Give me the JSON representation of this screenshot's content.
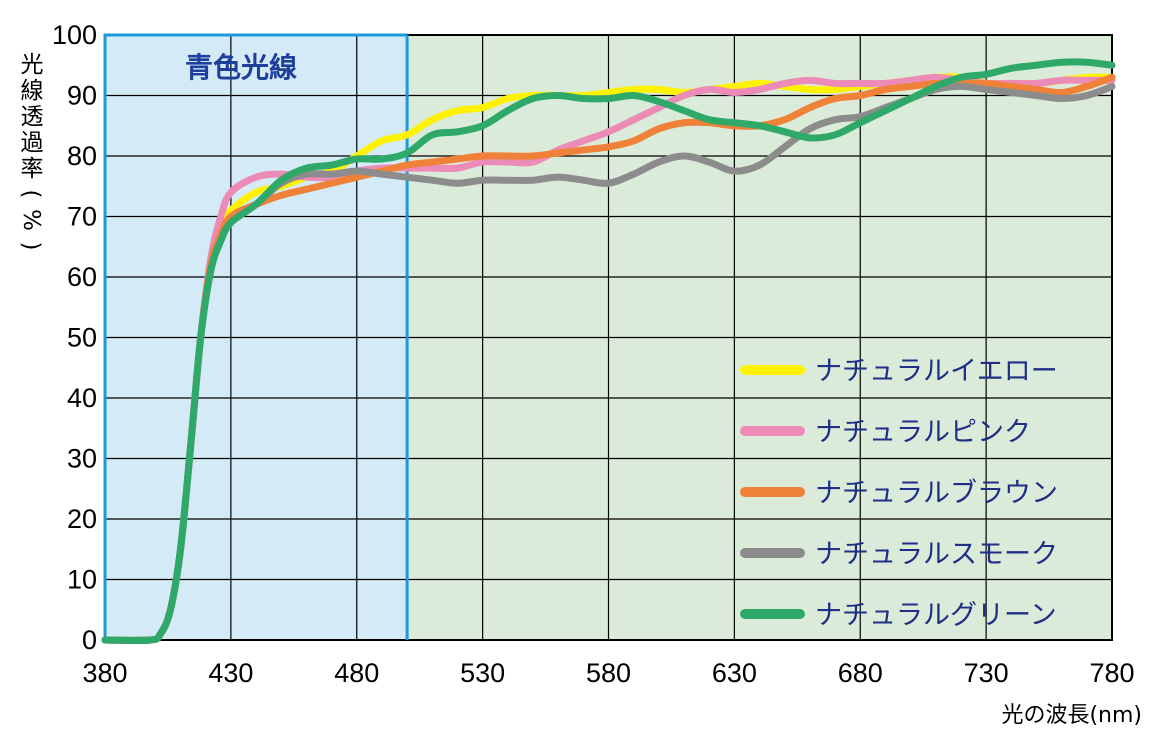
{
  "chart_data": {
    "type": "line",
    "xlabel": "光の波長(nm)",
    "ylabel": "光線透過率(%)",
    "xlim": [
      380,
      780
    ],
    "ylim": [
      0,
      100
    ],
    "x_ticks": [
      "380",
      "430",
      "480",
      "530",
      "580",
      "630",
      "680",
      "730",
      "780"
    ],
    "y_ticks": [
      "0",
      "10",
      "20",
      "30",
      "40",
      "50",
      "60",
      "70",
      "80",
      "90",
      "100"
    ],
    "grid": true,
    "legend_position": "bottom-right",
    "annotation": {
      "label": "青色光線",
      "x_start": 380,
      "x_end": 500
    },
    "colors": {
      "blue_region_fill": "#d4ebf7",
      "rest_fill": "#dbebd9",
      "blue_region_line": "#1a9ad9"
    },
    "series": [
      {
        "name": "ナチュラルイエロー",
        "color": "#fff200",
        "points": [
          [
            380,
            0
          ],
          [
            398,
            0
          ],
          [
            402,
            1
          ],
          [
            406,
            5
          ],
          [
            410,
            15
          ],
          [
            414,
            32
          ],
          [
            418,
            50
          ],
          [
            422,
            62
          ],
          [
            426,
            68
          ],
          [
            430,
            71
          ],
          [
            440,
            74
          ],
          [
            450,
            75
          ],
          [
            460,
            76.5
          ],
          [
            470,
            77.5
          ],
          [
            480,
            80
          ],
          [
            490,
            82.5
          ],
          [
            500,
            83.5
          ],
          [
            510,
            86
          ],
          [
            520,
            87.5
          ],
          [
            530,
            88
          ],
          [
            540,
            89.5
          ],
          [
            550,
            90
          ],
          [
            560,
            90
          ],
          [
            570,
            90
          ],
          [
            580,
            90.5
          ],
          [
            590,
            91
          ],
          [
            600,
            91
          ],
          [
            610,
            90.5
          ],
          [
            620,
            91
          ],
          [
            630,
            91.5
          ],
          [
            640,
            92
          ],
          [
            650,
            91.5
          ],
          [
            660,
            91
          ],
          [
            670,
            91
          ],
          [
            680,
            91.5
          ],
          [
            690,
            92
          ],
          [
            700,
            92.5
          ],
          [
            710,
            93
          ],
          [
            720,
            93
          ],
          [
            730,
            92
          ],
          [
            740,
            92
          ],
          [
            750,
            92
          ],
          [
            760,
            92.5
          ],
          [
            770,
            93
          ],
          [
            780,
            93
          ]
        ]
      },
      {
        "name": "ナチュラルピンク",
        "color": "#ec8bb7",
        "points": [
          [
            380,
            0
          ],
          [
            398,
            0
          ],
          [
            402,
            1
          ],
          [
            406,
            5
          ],
          [
            410,
            15
          ],
          [
            414,
            32
          ],
          [
            418,
            50
          ],
          [
            422,
            63
          ],
          [
            426,
            70
          ],
          [
            430,
            74
          ],
          [
            440,
            76.5
          ],
          [
            450,
            77
          ],
          [
            460,
            76.5
          ],
          [
            470,
            76.5
          ],
          [
            480,
            77.5
          ],
          [
            490,
            78
          ],
          [
            500,
            78
          ],
          [
            510,
            78
          ],
          [
            520,
            78
          ],
          [
            530,
            79
          ],
          [
            540,
            79
          ],
          [
            550,
            79
          ],
          [
            560,
            81
          ],
          [
            570,
            82.5
          ],
          [
            580,
            84
          ],
          [
            590,
            86
          ],
          [
            600,
            88
          ],
          [
            610,
            90
          ],
          [
            620,
            91
          ],
          [
            630,
            90.5
          ],
          [
            640,
            91
          ],
          [
            650,
            92
          ],
          [
            660,
            92.5
          ],
          [
            670,
            92
          ],
          [
            680,
            92
          ],
          [
            690,
            92
          ],
          [
            700,
            92.5
          ],
          [
            710,
            93
          ],
          [
            720,
            92.5
          ],
          [
            730,
            92
          ],
          [
            740,
            92
          ],
          [
            750,
            92
          ],
          [
            760,
            92.5
          ],
          [
            770,
            92.5
          ],
          [
            780,
            92.5
          ]
        ]
      },
      {
        "name": "ナチュラルブラウン",
        "color": "#ef8238",
        "points": [
          [
            380,
            0
          ],
          [
            398,
            0
          ],
          [
            402,
            1
          ],
          [
            406,
            5
          ],
          [
            410,
            15
          ],
          [
            414,
            32
          ],
          [
            418,
            50
          ],
          [
            422,
            62
          ],
          [
            426,
            67
          ],
          [
            430,
            70
          ],
          [
            440,
            72
          ],
          [
            450,
            73.5
          ],
          [
            460,
            74.5
          ],
          [
            470,
            75.5
          ],
          [
            480,
            76.5
          ],
          [
            490,
            77.5
          ],
          [
            500,
            78.5
          ],
          [
            510,
            79
          ],
          [
            520,
            79.5
          ],
          [
            530,
            80
          ],
          [
            540,
            80
          ],
          [
            550,
            80
          ],
          [
            560,
            80.5
          ],
          [
            570,
            81
          ],
          [
            580,
            81.5
          ],
          [
            590,
            82.5
          ],
          [
            600,
            84.5
          ],
          [
            610,
            85.5
          ],
          [
            620,
            85.5
          ],
          [
            630,
            85
          ],
          [
            640,
            85
          ],
          [
            650,
            86
          ],
          [
            660,
            88
          ],
          [
            670,
            89.5
          ],
          [
            680,
            90
          ],
          [
            690,
            91
          ],
          [
            700,
            91.5
          ],
          [
            710,
            92
          ],
          [
            720,
            92
          ],
          [
            730,
            92
          ],
          [
            740,
            91.5
          ],
          [
            750,
            91
          ],
          [
            760,
            90.5
          ],
          [
            770,
            91.5
          ],
          [
            780,
            93
          ]
        ]
      },
      {
        "name": "ナチュラルスモーク",
        "color": "#8c8c8c",
        "points": [
          [
            380,
            0
          ],
          [
            398,
            0
          ],
          [
            402,
            1
          ],
          [
            406,
            5
          ],
          [
            410,
            15
          ],
          [
            414,
            32
          ],
          [
            418,
            50
          ],
          [
            422,
            61
          ],
          [
            426,
            66
          ],
          [
            430,
            69
          ],
          [
            440,
            72
          ],
          [
            450,
            75.5
          ],
          [
            460,
            77
          ],
          [
            470,
            77
          ],
          [
            480,
            77.5
          ],
          [
            490,
            77
          ],
          [
            500,
            76.5
          ],
          [
            510,
            76
          ],
          [
            520,
            75.5
          ],
          [
            530,
            76
          ],
          [
            540,
            76
          ],
          [
            550,
            76
          ],
          [
            560,
            76.5
          ],
          [
            570,
            76
          ],
          [
            580,
            75.5
          ],
          [
            590,
            77
          ],
          [
            600,
            79
          ],
          [
            610,
            80
          ],
          [
            620,
            79
          ],
          [
            630,
            77.5
          ],
          [
            640,
            78.5
          ],
          [
            650,
            81.5
          ],
          [
            660,
            84.5
          ],
          [
            670,
            86
          ],
          [
            680,
            86.5
          ],
          [
            690,
            88
          ],
          [
            700,
            89.5
          ],
          [
            710,
            91
          ],
          [
            720,
            91.5
          ],
          [
            730,
            91
          ],
          [
            740,
            90.5
          ],
          [
            750,
            90
          ],
          [
            760,
            89.5
          ],
          [
            770,
            90
          ],
          [
            780,
            91.5
          ]
        ]
      },
      {
        "name": "ナチュラルグリーン",
        "color": "#2ea96a",
        "points": [
          [
            380,
            0
          ],
          [
            398,
            0
          ],
          [
            402,
            1
          ],
          [
            406,
            5
          ],
          [
            410,
            15
          ],
          [
            414,
            32
          ],
          [
            418,
            50
          ],
          [
            422,
            61
          ],
          [
            426,
            66
          ],
          [
            430,
            69
          ],
          [
            440,
            72
          ],
          [
            450,
            76
          ],
          [
            460,
            78
          ],
          [
            470,
            78.5
          ],
          [
            480,
            79.5
          ],
          [
            490,
            79.5
          ],
          [
            500,
            80.5
          ],
          [
            510,
            83.5
          ],
          [
            520,
            84
          ],
          [
            530,
            85
          ],
          [
            540,
            87.5
          ],
          [
            550,
            89.5
          ],
          [
            560,
            90
          ],
          [
            570,
            89.5
          ],
          [
            580,
            89.5
          ],
          [
            590,
            90
          ],
          [
            600,
            89
          ],
          [
            610,
            87.5
          ],
          [
            620,
            86
          ],
          [
            630,
            85.5
          ],
          [
            640,
            85
          ],
          [
            650,
            84
          ],
          [
            660,
            83
          ],
          [
            670,
            83.5
          ],
          [
            680,
            85.5
          ],
          [
            690,
            87.5
          ],
          [
            700,
            89.5
          ],
          [
            710,
            91.5
          ],
          [
            720,
            93
          ],
          [
            730,
            93.5
          ],
          [
            740,
            94.5
          ],
          [
            750,
            95
          ],
          [
            760,
            95.5
          ],
          [
            770,
            95.5
          ],
          [
            780,
            95
          ]
        ]
      }
    ]
  }
}
